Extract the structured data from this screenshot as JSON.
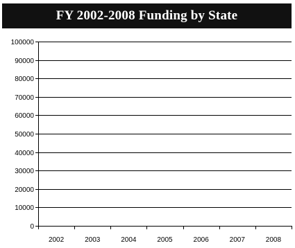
{
  "chart_data": {
    "type": "bar",
    "title": "FY 2002-2008 Funding by State",
    "categories": [
      "2002",
      "2003",
      "2004",
      "2005",
      "2006",
      "2007",
      "2008"
    ],
    "series": [],
    "xlabel": "",
    "ylabel": "",
    "ylim": [
      0,
      100000
    ],
    "yticks": [
      0,
      10000,
      20000,
      30000,
      40000,
      50000,
      60000,
      70000,
      80000,
      90000,
      100000
    ],
    "grid": true,
    "legend": "none"
  }
}
